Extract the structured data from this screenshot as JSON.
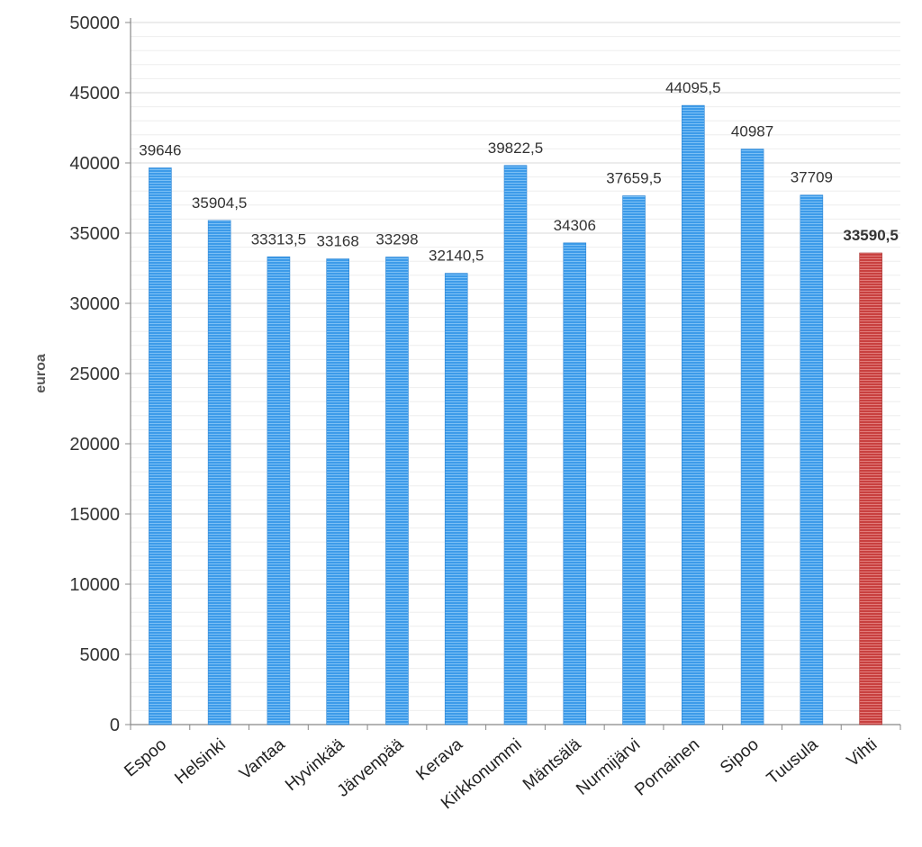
{
  "chart_data": {
    "type": "bar",
    "title": "",
    "xlabel": "",
    "ylabel": "euroa",
    "ylim": [
      0,
      50000
    ],
    "yticks": [
      0,
      5000,
      10000,
      15000,
      20000,
      25000,
      30000,
      35000,
      40000,
      45000,
      50000
    ],
    "grid": true,
    "legend": "none",
    "categories": [
      "Espoo",
      "Helsinki",
      "Vantaa",
      "Hyvinkää",
      "Järvenpää",
      "Kerava",
      "Kirkkonummi",
      "Mäntsälä",
      "Nurmijärvi",
      "Pornainen",
      "Sipoo",
      "Tuusula",
      "Vihti"
    ],
    "values": [
      39646,
      35904.5,
      33313.5,
      33168,
      33298,
      32140.5,
      39822.5,
      34306,
      37659.5,
      44095.5,
      40987,
      37709,
      33590.5
    ],
    "data_labels": [
      "39646",
      "35904,5",
      "33313,5",
      "33168",
      "33298",
      "32140,5",
      "39822,5",
      "34306",
      "37659,5",
      "44095,5",
      "40987",
      "37709",
      "33590,5"
    ],
    "highlight_category": "Vihti",
    "colors": {
      "bar": "#3d9be9",
      "highlight": "#c8403f",
      "grid": "#d9d9d9",
      "axis": "#888888"
    }
  }
}
